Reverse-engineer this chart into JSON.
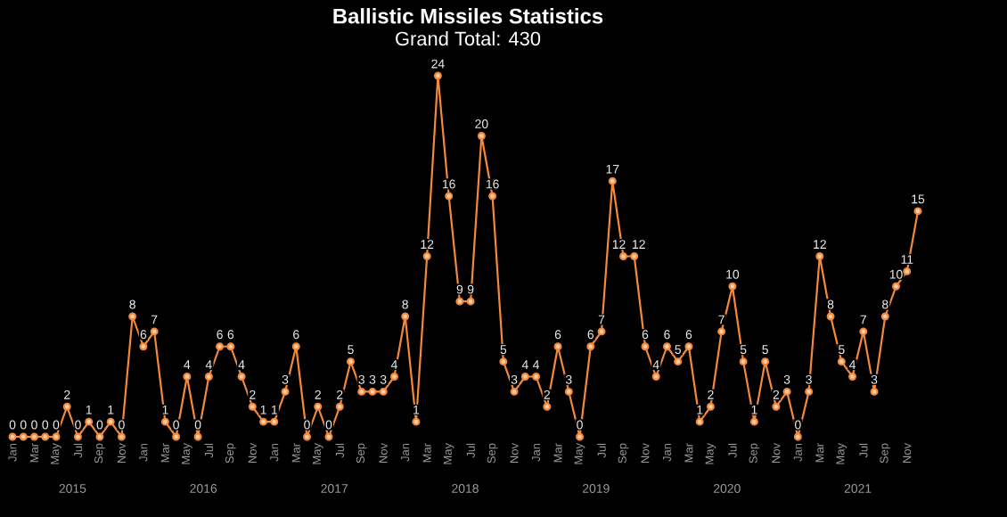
{
  "chart_data": {
    "type": "line",
    "title": "Ballistic Missiles Statistics",
    "subtitle": "Grand Total: 430",
    "categories": [
      "Jan",
      null,
      "Mar",
      null,
      "May",
      null,
      "Jul",
      null,
      "Sep",
      null,
      "Nov",
      null,
      "Jan",
      null,
      "Mar",
      null,
      "May",
      null,
      "Jul",
      null,
      "Sep",
      null,
      "Nov",
      null,
      "Jan",
      null,
      "Mar",
      null,
      "May",
      null,
      "Jul",
      null,
      "Sep",
      null,
      "Nov",
      null,
      "Jan",
      null,
      "Mar",
      null,
      "May",
      null,
      "Jul",
      null,
      "Sep",
      null,
      "Nov",
      null,
      "Jan",
      null,
      "Mar",
      null,
      "May",
      null,
      "Jul",
      null,
      "Sep",
      null,
      "Nov",
      null,
      "Jan",
      null,
      "Mar",
      null,
      "May",
      null,
      "Jul",
      null,
      "Sep",
      null,
      "Nov",
      null,
      "Jan",
      null,
      "Mar",
      null,
      "May",
      null,
      "Jul",
      null,
      "Sep",
      null,
      "Nov",
      null
    ],
    "values": [
      0,
      0,
      0,
      0,
      0,
      2,
      0,
      1,
      0,
      1,
      0,
      8,
      6,
      7,
      1,
      0,
      4,
      0,
      4,
      6,
      6,
      4,
      2,
      1,
      1,
      3,
      6,
      0,
      2,
      0,
      2,
      5,
      3,
      3,
      3,
      4,
      8,
      1,
      12,
      24,
      16,
      9,
      9,
      20,
      16,
      5,
      3,
      4,
      4,
      2,
      6,
      3,
      0,
      6,
      7,
      17,
      12,
      12,
      6,
      4,
      6,
      5,
      6,
      1,
      2,
      7,
      10,
      5,
      1,
      5,
      2,
      3,
      0,
      3,
      12,
      8,
      5,
      4,
      7,
      3,
      8,
      10,
      11,
      15
    ],
    "color": "#f5893a",
    "data_labels": true,
    "marker": "circle",
    "line_style": "solid",
    "grid": false,
    "legend": false,
    "annotations": [
      "2015",
      "2016",
      "2017",
      "2018",
      "2019",
      "2020",
      "2021"
    ]
  }
}
